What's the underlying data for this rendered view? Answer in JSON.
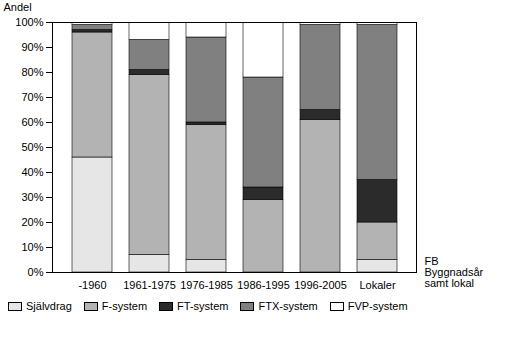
{
  "chart_data": {
    "type": "bar",
    "stacked": true,
    "grid": false,
    "legend": "bottom",
    "y_label": "Andel",
    "x_label": "FB\nByggnadsår\nsamt lokal",
    "categories": [
      "-1960",
      "1961-1975",
      "1976-1985",
      "1986-1995",
      "1996-2005",
      "Lokaler"
    ],
    "ylim": [
      0,
      100
    ],
    "yticks": [
      {
        "value": 0,
        "label": "0%"
      },
      {
        "value": 10,
        "label": "10%"
      },
      {
        "value": 20,
        "label": "20%"
      },
      {
        "value": 30,
        "label": "30%"
      },
      {
        "value": 40,
        "label": "40%"
      },
      {
        "value": 50,
        "label": "50%"
      },
      {
        "value": 60,
        "label": "60%"
      },
      {
        "value": 70,
        "label": "70%"
      },
      {
        "value": 80,
        "label": "80%"
      },
      {
        "value": 90,
        "label": "90%"
      },
      {
        "value": 100,
        "label": "100%"
      }
    ],
    "series": [
      {
        "name": "Självdrag",
        "color": "#e6e6e6",
        "values": [
          46,
          7,
          5,
          0,
          0,
          5
        ]
      },
      {
        "name": "F-system",
        "color": "#b3b3b3",
        "values": [
          50,
          72,
          54,
          29,
          61,
          15
        ]
      },
      {
        "name": "FT-system",
        "color": "#2b2b2b",
        "values": [
          1,
          2,
          1,
          5,
          4,
          17
        ]
      },
      {
        "name": "FTX-system",
        "color": "#808080",
        "values": [
          2,
          12,
          34,
          44,
          34,
          62
        ]
      },
      {
        "name": "FVP-system",
        "color": "#ffffff",
        "values": [
          1,
          7,
          6,
          22,
          1,
          1
        ]
      }
    ]
  }
}
